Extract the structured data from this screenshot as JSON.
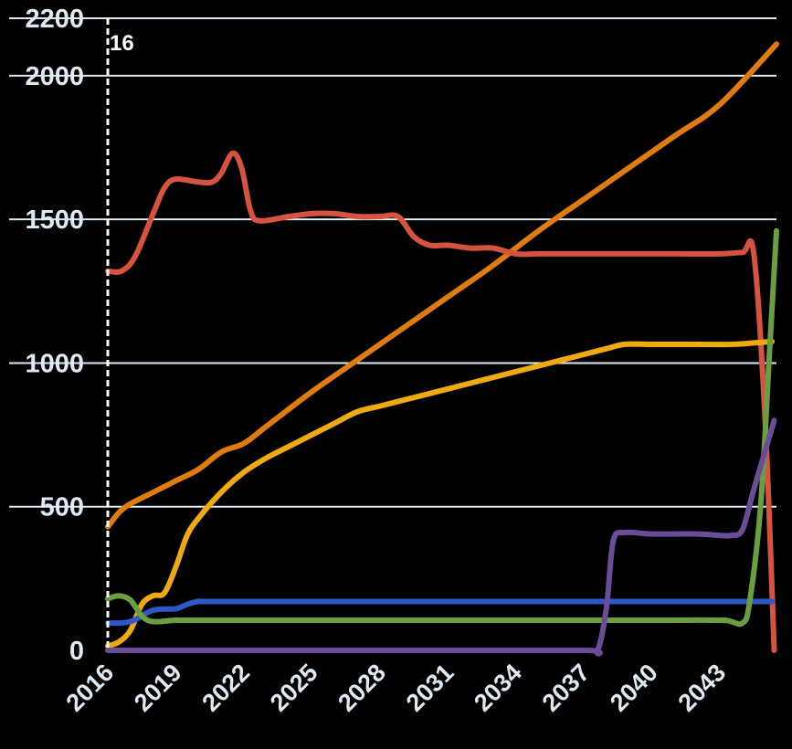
{
  "chart_data": {
    "type": "line",
    "title": "",
    "xlabel": "",
    "ylabel": "",
    "xlim": [
      2016,
      2045.5
    ],
    "ylim": [
      0,
      2200
    ],
    "x_ticks": [
      "2016",
      "2019",
      "2022",
      "2025",
      "2028",
      "2031",
      "2034",
      "2037",
      "2040",
      "2043"
    ],
    "y_ticks": [
      "0",
      "500",
      "1000",
      "1500",
      "2000",
      "2200"
    ],
    "grid": true,
    "legend": "none",
    "cursor": {
      "x": 2016,
      "label": "16"
    },
    "series": [
      {
        "color": "#e07b0e",
        "points": [
          [
            2016,
            430
          ],
          [
            2016.5,
            480
          ],
          [
            2017,
            510
          ],
          [
            2018,
            550
          ],
          [
            2019,
            590
          ],
          [
            2020,
            630
          ],
          [
            2021,
            690
          ],
          [
            2022,
            720
          ],
          [
            2023,
            780
          ],
          [
            2025,
            900
          ],
          [
            2027,
            1010
          ],
          [
            2029,
            1120
          ],
          [
            2031,
            1230
          ],
          [
            2033,
            1340
          ],
          [
            2035,
            1460
          ],
          [
            2037,
            1570
          ],
          [
            2039,
            1680
          ],
          [
            2041,
            1790
          ],
          [
            2043,
            1900
          ],
          [
            2045.5,
            2110
          ]
        ]
      },
      {
        "color": "#d6533f",
        "points": [
          [
            2016,
            1320
          ],
          [
            2016.6,
            1320
          ],
          [
            2017.2,
            1370
          ],
          [
            2018,
            1520
          ],
          [
            2018.5,
            1610
          ],
          [
            2019,
            1640
          ],
          [
            2020,
            1630
          ],
          [
            2020.6,
            1630
          ],
          [
            2021,
            1660
          ],
          [
            2021.5,
            1730
          ],
          [
            2021.9,
            1680
          ],
          [
            2022.3,
            1530
          ],
          [
            2022.7,
            1495
          ],
          [
            2024,
            1510
          ],
          [
            2025,
            1520
          ],
          [
            2026,
            1520
          ],
          [
            2027,
            1510
          ],
          [
            2028,
            1510
          ],
          [
            2028.8,
            1510
          ],
          [
            2029.5,
            1440
          ],
          [
            2030.2,
            1410
          ],
          [
            2031,
            1410
          ],
          [
            2032,
            1400
          ],
          [
            2033,
            1400
          ],
          [
            2034,
            1380
          ],
          [
            2035,
            1380
          ],
          [
            2037,
            1380
          ],
          [
            2039,
            1380
          ],
          [
            2041,
            1380
          ],
          [
            2043,
            1380
          ],
          [
            2044,
            1385
          ],
          [
            2044.5,
            1380
          ],
          [
            2045,
            800
          ],
          [
            2045.4,
            0
          ]
        ]
      },
      {
        "color": "#efaa10",
        "points": [
          [
            2016,
            15
          ],
          [
            2016.5,
            30
          ],
          [
            2017,
            70
          ],
          [
            2017.5,
            160
          ],
          [
            2018,
            190
          ],
          [
            2018.5,
            200
          ],
          [
            2019,
            290
          ],
          [
            2019.5,
            400
          ],
          [
            2020,
            460
          ],
          [
            2021,
            550
          ],
          [
            2022,
            620
          ],
          [
            2023,
            670
          ],
          [
            2024,
            710
          ],
          [
            2025,
            750
          ],
          [
            2026,
            790
          ],
          [
            2027,
            830
          ],
          [
            2028,
            850
          ],
          [
            2029,
            870
          ],
          [
            2030,
            890
          ],
          [
            2031,
            910
          ],
          [
            2032,
            930
          ],
          [
            2033,
            950
          ],
          [
            2034,
            970
          ],
          [
            2035,
            990
          ],
          [
            2036,
            1010
          ],
          [
            2037,
            1030
          ],
          [
            2038,
            1050
          ],
          [
            2038.8,
            1065
          ],
          [
            2040,
            1065
          ],
          [
            2042,
            1065
          ],
          [
            2043.5,
            1065
          ],
          [
            2044.5,
            1070
          ],
          [
            2045.3,
            1075
          ]
        ]
      },
      {
        "color": "#2e58c8",
        "points": [
          [
            2016,
            95
          ],
          [
            2017,
            100
          ],
          [
            2018,
            140
          ],
          [
            2019,
            145
          ],
          [
            2019.5,
            160
          ],
          [
            2020,
            170
          ],
          [
            2021,
            170
          ],
          [
            2030,
            170
          ],
          [
            2040,
            170
          ],
          [
            2045.3,
            170
          ]
        ]
      },
      {
        "color": "#6a9e3f",
        "points": [
          [
            2016,
            180
          ],
          [
            2016.5,
            190
          ],
          [
            2017,
            175
          ],
          [
            2017.5,
            120
          ],
          [
            2018,
            100
          ],
          [
            2019,
            105
          ],
          [
            2020,
            105
          ],
          [
            2030,
            105
          ],
          [
            2040,
            105
          ],
          [
            2043,
            105
          ],
          [
            2043.5,
            100
          ],
          [
            2044,
            95
          ],
          [
            2044.3,
            160
          ],
          [
            2044.8,
            500
          ],
          [
            2045.2,
            1050
          ],
          [
            2045.5,
            1460
          ]
        ]
      },
      {
        "color": "#6a4c98",
        "points": [
          [
            2016,
            0
          ],
          [
            2020,
            0
          ],
          [
            2030,
            0
          ],
          [
            2037,
            0
          ],
          [
            2037.6,
            0
          ],
          [
            2038,
            150
          ],
          [
            2038.3,
            380
          ],
          [
            2038.8,
            410
          ],
          [
            2040,
            405
          ],
          [
            2042,
            405
          ],
          [
            2043,
            400
          ],
          [
            2043.5,
            400
          ],
          [
            2044,
            420
          ],
          [
            2044.5,
            560
          ],
          [
            2045.4,
            800
          ]
        ]
      }
    ]
  }
}
